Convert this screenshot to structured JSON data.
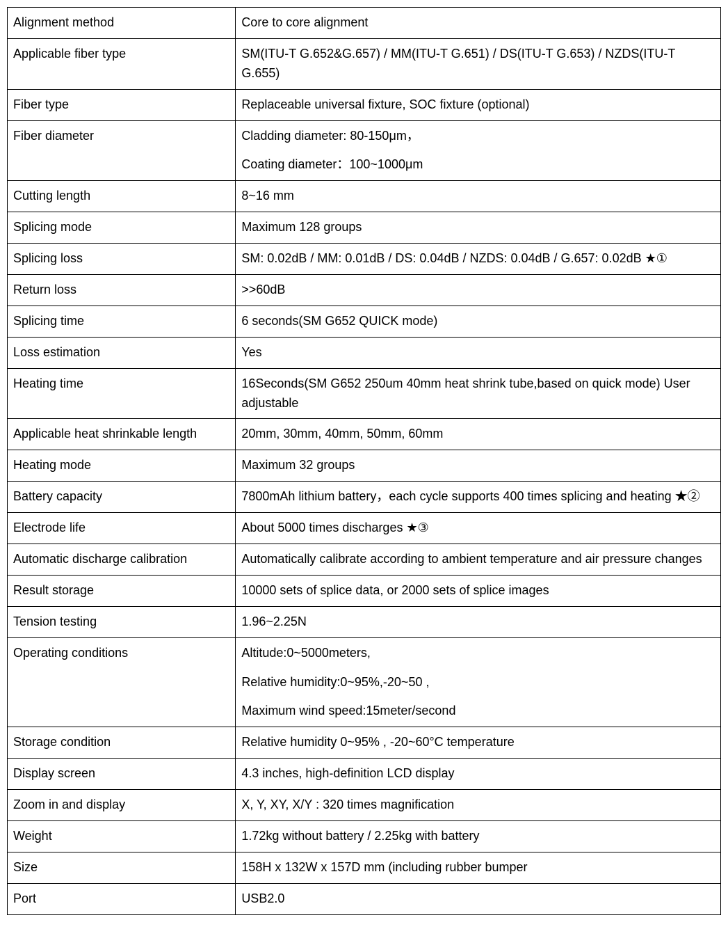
{
  "specs": {
    "columns": [
      "label",
      "value"
    ],
    "column_widths": [
      "32%",
      "68%"
    ],
    "border_color": "#000000",
    "text_color": "#000000",
    "background_color": "#ffffff",
    "font_size": 18,
    "rows": [
      {
        "label": "Alignment method",
        "value": "Core to core alignment"
      },
      {
        "label": "Applicable fiber type",
        "value": "SM(ITU-T G.652&G.657) / MM(ITU-T G.651) / DS(ITU-T G.653) / NZDS(ITU-T G.655)"
      },
      {
        "label": "Fiber type",
        "value": "Replaceable universal fixture, SOC fixture (optional)"
      },
      {
        "label": "Fiber diameter",
        "value_lines": [
          "Cladding diameter: 80-150μm，",
          "Coating diameter：100~1000μm"
        ]
      },
      {
        "label": "Cutting length",
        "value": "8~16 mm"
      },
      {
        "label": "Splicing mode",
        "value": "Maximum 128 groups"
      },
      {
        "label": "Splicing loss",
        "value": "SM: 0.02dB / MM: 0.01dB / DS: 0.04dB / NZDS: 0.04dB / G.657: 0.02dB ★①"
      },
      {
        "label": "Return loss",
        "value": ">>60dB"
      },
      {
        "label": "Splicing time",
        "value": "6 seconds(SM G652 QUICK mode)"
      },
      {
        "label": "Loss estimation",
        "value": "Yes"
      },
      {
        "label": "Heating time",
        "value": "16Seconds(SM G652 250um 40mm heat shrink tube,based on quick mode) User adjustable"
      },
      {
        "label": "Applicable heat shrinkable length",
        "value": "20mm, 30mm, 40mm, 50mm, 60mm"
      },
      {
        "label": "Heating mode",
        "value": "Maximum 32 groups"
      },
      {
        "label": "Battery capacity",
        "value": "7800mAh lithium battery，each cycle supports 400 times splicing and heating ★②"
      },
      {
        "label": "Electrode life",
        "value": "About 5000 times discharges ★③"
      },
      {
        "label": "Automatic discharge calibration",
        "value": "Automatically calibrate according to ambient temperature and air pressure changes"
      },
      {
        "label": "Result storage",
        "value": "10000 sets of splice data, or 2000 sets of splice images"
      },
      {
        "label": "Tension testing",
        "value": "1.96~2.25N"
      },
      {
        "label": "Operating conditions",
        "value_lines": [
          "Altitude:0~5000meters,",
          "Relative humidity:0~95%,-20~50 ,",
          "Maximum wind speed:15meter/second"
        ]
      },
      {
        "label": "Storage condition",
        "value": "Relative humidity 0~95% , -20~60°C temperature"
      },
      {
        "label": "Display screen",
        "value": "4.3 inches, high-definition LCD display"
      },
      {
        "label": "Zoom in and display",
        "value": "X, Y, XY, X/Y : 320 times magnification"
      },
      {
        "label": "Weight",
        "value": "1.72kg without battery / 2.25kg with battery"
      },
      {
        "label": "Size",
        "value": "158H x 132W x 157D mm (including rubber bumper"
      },
      {
        "label": "Port",
        "value": "USB2.0"
      }
    ]
  }
}
